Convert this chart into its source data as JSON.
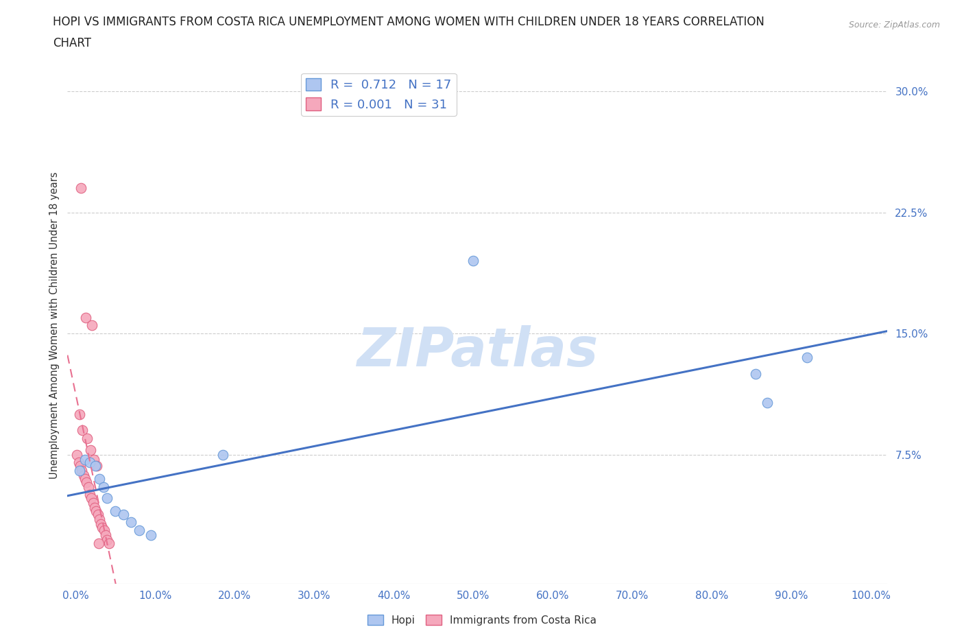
{
  "title_line1": "HOPI VS IMMIGRANTS FROM COSTA RICA UNEMPLOYMENT AMONG WOMEN WITH CHILDREN UNDER 18 YEARS CORRELATION",
  "title_line2": "CHART",
  "source": "Source: ZipAtlas.com",
  "ylabel": "Unemployment Among Women with Children Under 18 years",
  "hopi_R": 0.712,
  "hopi_N": 17,
  "cr_R": 0.001,
  "cr_N": 31,
  "hopi_color": "#aec6f0",
  "cr_color": "#f5a8bc",
  "hopi_edge_color": "#6699d8",
  "cr_edge_color": "#e06080",
  "hopi_line_color": "#4472c4",
  "cr_line_color": "#e87090",
  "watermark_color": "#d0e0f5",
  "xlim": [
    -0.01,
    1.02
  ],
  "ylim": [
    -0.005,
    0.315
  ],
  "xticks": [
    0.0,
    0.1,
    0.2,
    0.3,
    0.4,
    0.5,
    0.6,
    0.7,
    0.8,
    0.9,
    1.0
  ],
  "yticks": [
    0.075,
    0.15,
    0.225,
    0.3
  ],
  "hopi_x": [
    0.005,
    0.012,
    0.018,
    0.025,
    0.03,
    0.035,
    0.04,
    0.05,
    0.06,
    0.07,
    0.08,
    0.095,
    0.185,
    0.855,
    0.87,
    0.92,
    0.5
  ],
  "hopi_y": [
    0.065,
    0.072,
    0.07,
    0.068,
    0.06,
    0.055,
    0.048,
    0.04,
    0.038,
    0.033,
    0.028,
    0.025,
    0.075,
    0.125,
    0.107,
    0.135,
    0.195
  ],
  "cr_x": [
    0.002,
    0.004,
    0.006,
    0.008,
    0.01,
    0.012,
    0.014,
    0.016,
    0.018,
    0.02,
    0.022,
    0.024,
    0.026,
    0.028,
    0.03,
    0.032,
    0.034,
    0.036,
    0.038,
    0.04,
    0.042,
    0.005,
    0.009,
    0.015,
    0.019,
    0.023,
    0.027,
    0.007,
    0.013,
    0.021,
    0.029
  ],
  "cr_y": [
    0.075,
    0.07,
    0.068,
    0.065,
    0.062,
    0.06,
    0.058,
    0.055,
    0.05,
    0.048,
    0.045,
    0.042,
    0.04,
    0.038,
    0.035,
    0.032,
    0.03,
    0.028,
    0.025,
    0.022,
    0.02,
    0.1,
    0.09,
    0.085,
    0.078,
    0.072,
    0.068,
    0.24,
    0.16,
    0.155,
    0.02
  ],
  "background_color": "#ffffff",
  "grid_color": "#cccccc",
  "marker_size": 110,
  "legend_fontsize": 13,
  "title_fontsize": 12,
  "tick_label_color": "#4472c4"
}
